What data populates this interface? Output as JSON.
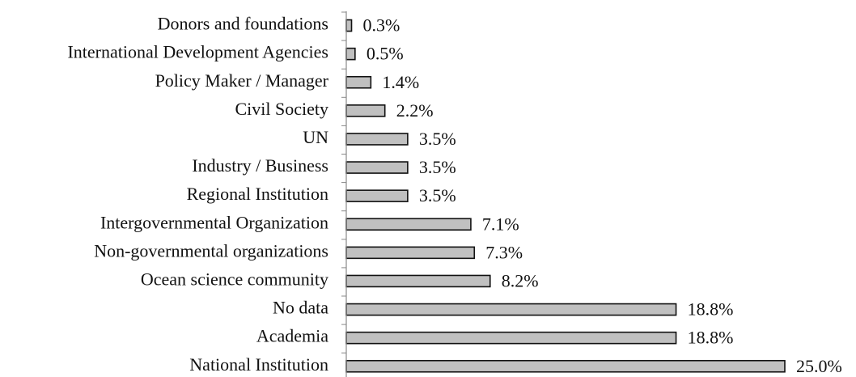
{
  "chart_data": {
    "type": "barh",
    "categories": [
      "Donors and foundations",
      "International Development Agencies",
      "Policy Maker / Manager",
      "Civil Society",
      "UN",
      "Industry / Business",
      "Regional Institution",
      "Intergovernmental Organization",
      "Non-governmental organizations",
      "Ocean science community",
      "No data",
      "Academia",
      "National Institution"
    ],
    "values": [
      0.3,
      0.5,
      1.4,
      2.2,
      3.5,
      3.5,
      3.5,
      7.1,
      7.3,
      8.2,
      18.8,
      18.8,
      25.0
    ],
    "value_labels": [
      "0.3%",
      "0.5%",
      "1.4%",
      "2.2%",
      "3.5%",
      "3.5%",
      "3.5%",
      "7.1%",
      "7.3%",
      "8.2%",
      "18.8%",
      "18.8%",
      "25.0%"
    ],
    "color": "#c0c0c0",
    "xlim": [
      0,
      25
    ]
  }
}
